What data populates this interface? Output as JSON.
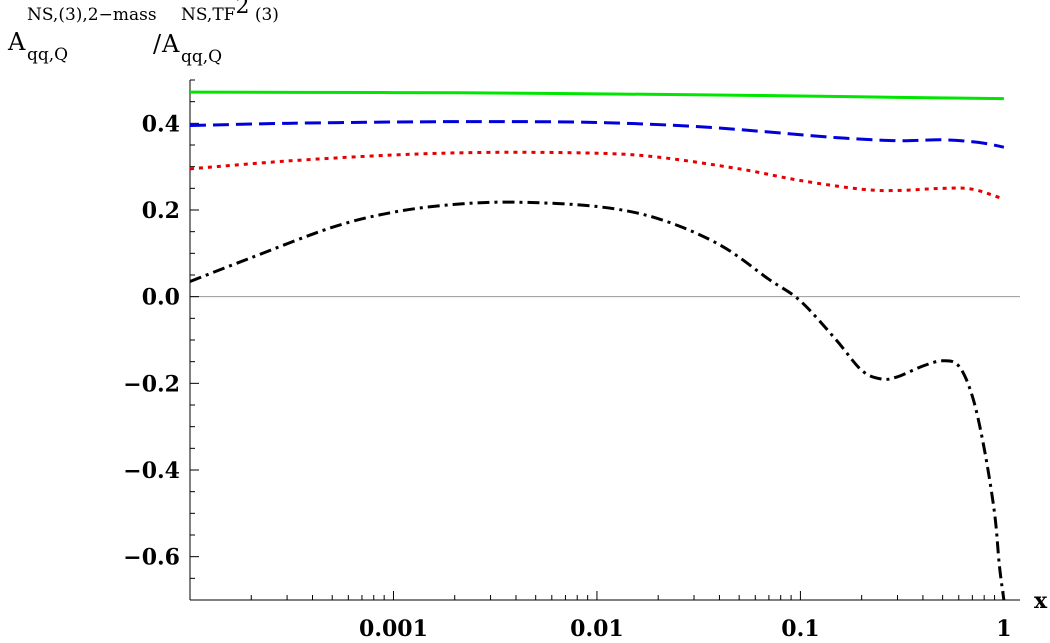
{
  "chart_data": {
    "type": "line",
    "ylabel": {
      "num_base": "A",
      "num_sub": "qq,Q",
      "num_sup": "NS,(3),2−mass",
      "slash": "/",
      "den_base": "A",
      "den_sub": "qq,Q",
      "den_sup": "NS,TF",
      "den_sup_power": "2",
      "den_sup_tail": " (3)"
    },
    "xlabel": "x",
    "x_scale": "log",
    "xlim": [
      0.0001,
      1.2
    ],
    "ylim": [
      -0.7,
      0.5
    ],
    "x_ticks": [
      {
        "value": 0.001,
        "label": "0.001"
      },
      {
        "value": 0.01,
        "label": "0.01"
      },
      {
        "value": 0.1,
        "label": "0.1"
      },
      {
        "value": 1,
        "label": "1"
      }
    ],
    "y_ticks": [
      {
        "value": 0.4,
        "label": "0.4"
      },
      {
        "value": 0.2,
        "label": "0.2"
      },
      {
        "value": 0.0,
        "label": "0.0"
      },
      {
        "value": -0.2,
        "label": "−0.2"
      },
      {
        "value": -0.4,
        "label": "−0.4"
      },
      {
        "value": -0.6,
        "label": "−0.6"
      }
    ],
    "zero_line": true,
    "series": [
      {
        "color": "#00e600",
        "style": "solid",
        "points": [
          [
            0.0001,
            0.472
          ],
          [
            0.001,
            0.471
          ],
          [
            0.003,
            0.47
          ],
          [
            0.01,
            0.468
          ],
          [
            0.03,
            0.466
          ],
          [
            0.1,
            0.463
          ],
          [
            0.3,
            0.46
          ],
          [
            1.0,
            0.457
          ]
        ]
      },
      {
        "color": "#0000dd",
        "style": "dashed",
        "points": [
          [
            0.0001,
            0.395
          ],
          [
            0.0003,
            0.4
          ],
          [
            0.001,
            0.403
          ],
          [
            0.003,
            0.404
          ],
          [
            0.01,
            0.402
          ],
          [
            0.03,
            0.393
          ],
          [
            0.07,
            0.38
          ],
          [
            0.15,
            0.367
          ],
          [
            0.3,
            0.36
          ],
          [
            0.5,
            0.362
          ],
          [
            0.75,
            0.356
          ],
          [
            1.0,
            0.345
          ]
        ]
      },
      {
        "color": "#e60000",
        "style": "dotted",
        "points": [
          [
            0.0001,
            0.295
          ],
          [
            0.0003,
            0.313
          ],
          [
            0.001,
            0.327
          ],
          [
            0.003,
            0.333
          ],
          [
            0.01,
            0.331
          ],
          [
            0.02,
            0.322
          ],
          [
            0.05,
            0.295
          ],
          [
            0.1,
            0.268
          ],
          [
            0.2,
            0.248
          ],
          [
            0.3,
            0.245
          ],
          [
            0.5,
            0.25
          ],
          [
            0.7,
            0.248
          ],
          [
            1.0,
            0.225
          ]
        ]
      },
      {
        "color": "#000000",
        "style": "dashdot",
        "points": [
          [
            0.0001,
            0.035
          ],
          [
            0.0002,
            0.09
          ],
          [
            0.0005,
            0.16
          ],
          [
            0.001,
            0.195
          ],
          [
            0.002,
            0.213
          ],
          [
            0.004,
            0.218
          ],
          [
            0.01,
            0.208
          ],
          [
            0.02,
            0.18
          ],
          [
            0.04,
            0.12
          ],
          [
            0.07,
            0.04
          ],
          [
            0.1,
            -0.01
          ],
          [
            0.15,
            -0.1
          ],
          [
            0.2,
            -0.17
          ],
          [
            0.25,
            -0.19
          ],
          [
            0.3,
            -0.185
          ],
          [
            0.4,
            -0.16
          ],
          [
            0.5,
            -0.148
          ],
          [
            0.6,
            -0.16
          ],
          [
            0.7,
            -0.23
          ],
          [
            0.8,
            -0.35
          ],
          [
            0.9,
            -0.5
          ],
          [
            0.95,
            -0.62
          ],
          [
            1.0,
            -0.7
          ]
        ]
      }
    ]
  }
}
